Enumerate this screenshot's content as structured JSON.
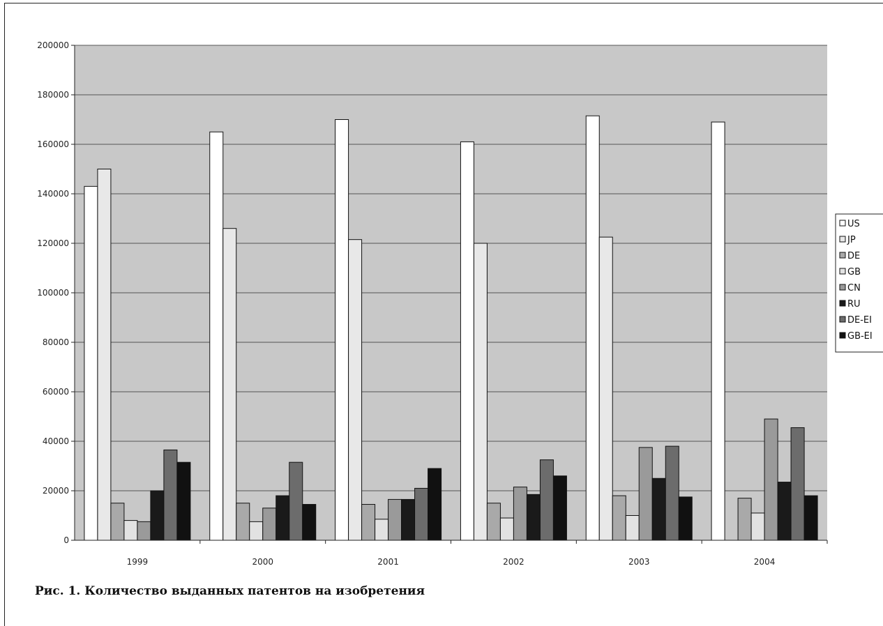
{
  "caption": "Рис. 1. Количество выданных патентов на изобретения",
  "chart_data": {
    "type": "bar",
    "categories": [
      "1999",
      "2000",
      "2001",
      "2002",
      "2003",
      "2004"
    ],
    "ylim": [
      0,
      200000
    ],
    "yticks": [
      0,
      20000,
      40000,
      60000,
      80000,
      100000,
      120000,
      140000,
      160000,
      180000,
      200000
    ],
    "grid": true,
    "legend_position": "right",
    "series": [
      {
        "name": "US",
        "color": "#ffffff",
        "values": [
          143000,
          165000,
          170000,
          161000,
          171500,
          169000
        ]
      },
      {
        "name": "JP",
        "color": "#e8e8e8",
        "values": [
          150000,
          126000,
          121500,
          120000,
          122500,
          0
        ]
      },
      {
        "name": "DE",
        "color": "#a9a9a9",
        "values": [
          15000,
          15000,
          14500,
          15000,
          18000,
          17000
        ]
      },
      {
        "name": "GB",
        "color": "#e2e2e2",
        "values": [
          8000,
          7500,
          8500,
          9000,
          10000,
          11000
        ]
      },
      {
        "name": "CN",
        "color": "#9a9a9a",
        "values": [
          7500,
          13000,
          16500,
          21500,
          37500,
          49000
        ]
      },
      {
        "name": "RU",
        "color": "#1a1a1a",
        "values": [
          20000,
          18000,
          16500,
          18500,
          25000,
          23500
        ]
      },
      {
        "name": "DE-EI",
        "color": "#6c6c6c",
        "values": [
          36500,
          31500,
          21000,
          32500,
          38000,
          45500
        ]
      },
      {
        "name": "GB-EI",
        "color": "#111111",
        "values": [
          31500,
          14500,
          29000,
          26000,
          17500,
          18000
        ]
      }
    ]
  }
}
